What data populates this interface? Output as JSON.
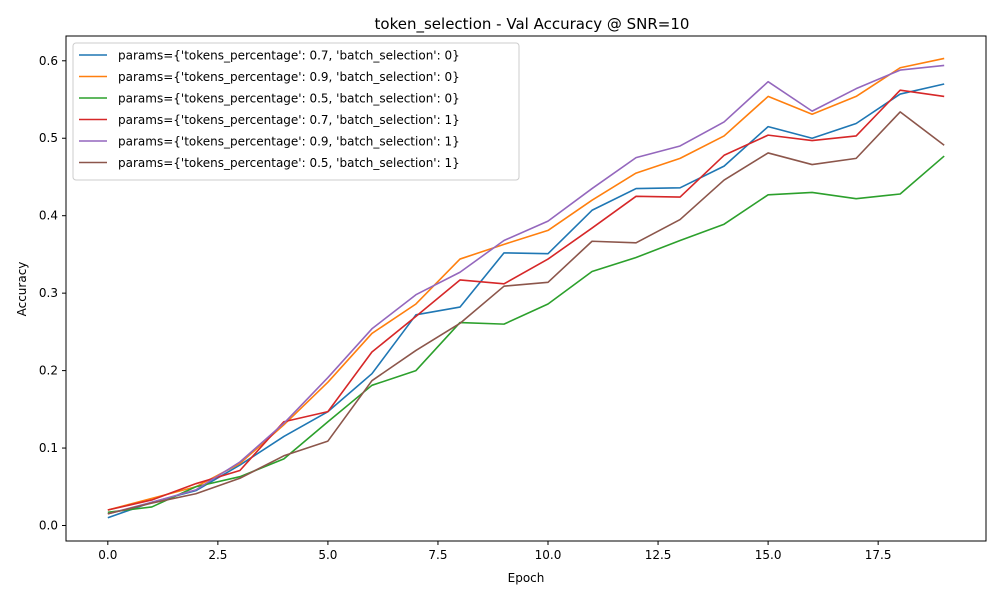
{
  "chart_data": {
    "type": "line",
    "title": "token_selection - Val Accuracy @ SNR=10",
    "xlabel": "Epoch",
    "ylabel": "Accuracy",
    "xlim": [
      -0.95,
      19.95
    ],
    "ylim": [
      -0.02,
      0.632
    ],
    "xticks": [
      0.0,
      2.5,
      5.0,
      7.5,
      10.0,
      12.5,
      15.0,
      17.5
    ],
    "xtick_labels": [
      "0.0",
      "2.5",
      "5.0",
      "7.5",
      "10.0",
      "12.5",
      "15.0",
      "17.5"
    ],
    "yticks": [
      0.0,
      0.1,
      0.2,
      0.3,
      0.4,
      0.5,
      0.6
    ],
    "ytick_labels": [
      "0.0",
      "0.1",
      "0.2",
      "0.3",
      "0.4",
      "0.5",
      "0.6"
    ],
    "grid": false,
    "legend_position": "top-left",
    "x": [
      0,
      1,
      2,
      3,
      4,
      5,
      6,
      7,
      8,
      9,
      10,
      11,
      12,
      13,
      14,
      15,
      16,
      17,
      18,
      19
    ],
    "series": [
      {
        "name": "params={'tokens_percentage': 0.7, 'batch_selection': 0}",
        "color": "#1f77b4",
        "values": [
          0.01,
          0.03,
          0.045,
          0.078,
          0.115,
          0.147,
          0.196,
          0.272,
          0.282,
          0.352,
          0.351,
          0.407,
          0.435,
          0.436,
          0.464,
          0.515,
          0.5,
          0.519,
          0.557,
          0.57
        ]
      },
      {
        "name": "params={'tokens_percentage': 0.9, 'batch_selection': 0}",
        "color": "#ff7f0e",
        "values": [
          0.02,
          0.035,
          0.05,
          0.08,
          0.13,
          0.185,
          0.248,
          0.286,
          0.344,
          0.363,
          0.381,
          0.42,
          0.455,
          0.474,
          0.503,
          0.554,
          0.531,
          0.554,
          0.591,
          0.603
        ]
      },
      {
        "name": "params={'tokens_percentage': 0.5, 'batch_selection': 0}",
        "color": "#2ca02c",
        "values": [
          0.017,
          0.024,
          0.05,
          0.063,
          0.086,
          0.134,
          0.181,
          0.2,
          0.262,
          0.26,
          0.286,
          0.328,
          0.346,
          0.368,
          0.389,
          0.427,
          0.43,
          0.422,
          0.428,
          0.477
        ]
      },
      {
        "name": "params={'tokens_percentage': 0.7, 'batch_selection': 1}",
        "color": "#d62728",
        "values": [
          0.02,
          0.033,
          0.054,
          0.071,
          0.134,
          0.147,
          0.224,
          0.27,
          0.317,
          0.312,
          0.344,
          0.384,
          0.425,
          0.424,
          0.478,
          0.504,
          0.497,
          0.503,
          0.562,
          0.554
        ]
      },
      {
        "name": "params={'tokens_percentage': 0.9, 'batch_selection': 1}",
        "color": "#9467bd",
        "values": [
          0.015,
          0.03,
          0.046,
          0.082,
          0.132,
          0.191,
          0.254,
          0.298,
          0.327,
          0.368,
          0.393,
          0.435,
          0.475,
          0.49,
          0.521,
          0.573,
          0.535,
          0.564,
          0.588,
          0.594
        ]
      },
      {
        "name": "params={'tokens_percentage': 0.5, 'batch_selection': 1}",
        "color": "#8c564b",
        "values": [
          0.015,
          0.029,
          0.041,
          0.061,
          0.09,
          0.109,
          0.187,
          0.226,
          0.261,
          0.309,
          0.314,
          0.367,
          0.365,
          0.395,
          0.446,
          0.481,
          0.466,
          0.474,
          0.534,
          0.491
        ]
      }
    ]
  }
}
